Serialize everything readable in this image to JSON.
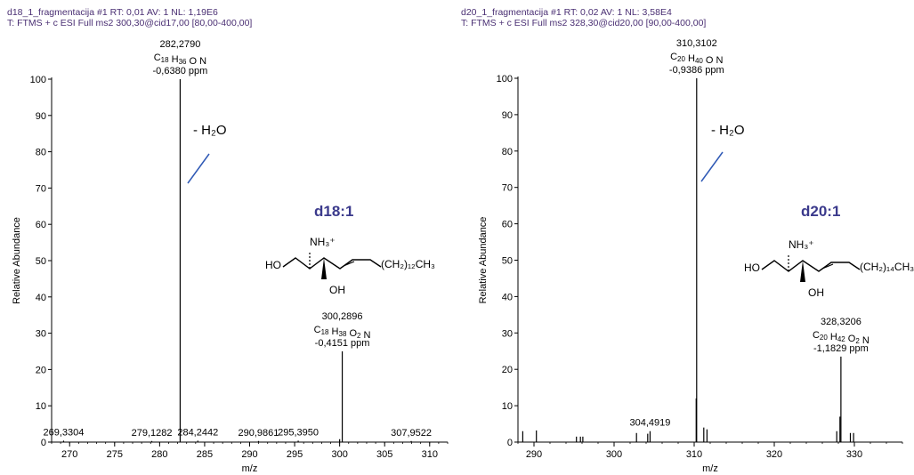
{
  "colors": {
    "header": "#4a2f73",
    "annot_line": "#2f59b5",
    "name": "#3b3a8c"
  },
  "panels": [
    {
      "header_line1": "d18_1_fragmentacija #1  RT: 0,01  AV: 1  NL: 1,19E6",
      "header_line2": "T: FTMS + c ESI Full ms2 300,30@cid17,00 [80,00-400,00]",
      "name": "d18:1",
      "water_loss": "- H₂O",
      "structure": {
        "ammonium": "NH₃⁺",
        "hydroxyl_left": "HO",
        "hydroxyl_down": "OH",
        "tail": "(CH₂)₁₂CH₃"
      },
      "chart_data": {
        "type": "bar",
        "xlabel": "m/z",
        "ylabel": "Relative Abundance",
        "xlim": [
          268,
          312
        ],
        "ylim": [
          0,
          100
        ],
        "xticks": [
          270,
          275,
          280,
          285,
          290,
          295,
          300,
          305,
          310
        ],
        "yticks": [
          0,
          10,
          20,
          30,
          40,
          50,
          60,
          70,
          80,
          90,
          100
        ],
        "peaks": [
          {
            "x": 282.279,
            "y": 100
          },
          {
            "x": 300.2896,
            "y": 25
          },
          {
            "x": 300.0,
            "y": 0.8
          },
          {
            "x": 269.3304,
            "y": 0.4
          },
          {
            "x": 279.1282,
            "y": 0.3
          },
          {
            "x": 284.2442,
            "y": 0.4
          },
          {
            "x": 290.9861,
            "y": 0.3
          },
          {
            "x": 295.395,
            "y": 0.4
          },
          {
            "x": 307.9522,
            "y": 0.3
          }
        ],
        "annotations": [
          {
            "x": 282.279,
            "lines": [
              "282,2790",
              "C18 H36 O N",
              "-0,6380 ppm"
            ]
          },
          {
            "x": 300.2896,
            "lines": [
              "300,2896",
              "C18 H38 O2 N",
              "-0,4151 ppm"
            ]
          },
          {
            "x": 269.3304,
            "lines": [
              "269,3304"
            ]
          },
          {
            "x": 279.1282,
            "lines": [
              "279,1282"
            ]
          },
          {
            "x": 284.2442,
            "lines": [
              "284,2442"
            ]
          },
          {
            "x": 290.9861,
            "lines": [
              "290,9861"
            ]
          },
          {
            "x": 295.395,
            "lines": [
              "295,3950"
            ]
          },
          {
            "x": 307.9522,
            "lines": [
              "307,9522"
            ]
          }
        ]
      }
    },
    {
      "header_line1": "d20_1_fragmentacija #1  RT: 0,02  AV: 1  NL: 3,58E4",
      "header_line2": "T: FTMS + c ESI Full ms2 328,30@cid20,00 [90,00-400,00]",
      "name": "d20:1",
      "water_loss": "- H₂O",
      "structure": {
        "ammonium": "NH₃⁺",
        "hydroxyl_left": "HO",
        "hydroxyl_down": "OH",
        "tail": "(CH₂)₁₄CH₃"
      },
      "chart_data": {
        "type": "bar",
        "xlabel": "m/z",
        "ylabel": "Relative Abundance",
        "xlim": [
          288,
          336
        ],
        "ylim": [
          0,
          100
        ],
        "xticks": [
          290,
          300,
          310,
          320,
          330
        ],
        "yticks": [
          0,
          10,
          20,
          30,
          40,
          50,
          60,
          70,
          80,
          90,
          100
        ],
        "peaks": [
          {
            "x": 310.3102,
            "y": 100
          },
          {
            "x": 328.3206,
            "y": 23.5
          },
          {
            "x": 310.25,
            "y": 12
          },
          {
            "x": 328.2,
            "y": 7
          },
          {
            "x": 327.8,
            "y": 3
          },
          {
            "x": 304.4919,
            "y": 3
          },
          {
            "x": 302.8,
            "y": 2.5
          },
          {
            "x": 304.2,
            "y": 2.3
          },
          {
            "x": 311.2,
            "y": 4
          },
          {
            "x": 311.6,
            "y": 3.5
          },
          {
            "x": 329.5,
            "y": 2.5
          },
          {
            "x": 329.9,
            "y": 2.5
          },
          {
            "x": 288.6,
            "y": 3
          },
          {
            "x": 290.3,
            "y": 3.2
          },
          {
            "x": 295.3,
            "y": 1.5
          },
          {
            "x": 295.8,
            "y": 1.5
          },
          {
            "x": 296.1,
            "y": 1.5
          }
        ],
        "annotations": [
          {
            "x": 310.3102,
            "lines": [
              "310,3102",
              "C20 H40 O N",
              "-0,9386 ppm"
            ]
          },
          {
            "x": 328.3206,
            "lines": [
              "328,3206",
              "C20 H42 O2 N",
              "-1,1829 ppm"
            ]
          },
          {
            "x": 304.4919,
            "lines": [
              "304,4919"
            ]
          }
        ]
      }
    }
  ]
}
